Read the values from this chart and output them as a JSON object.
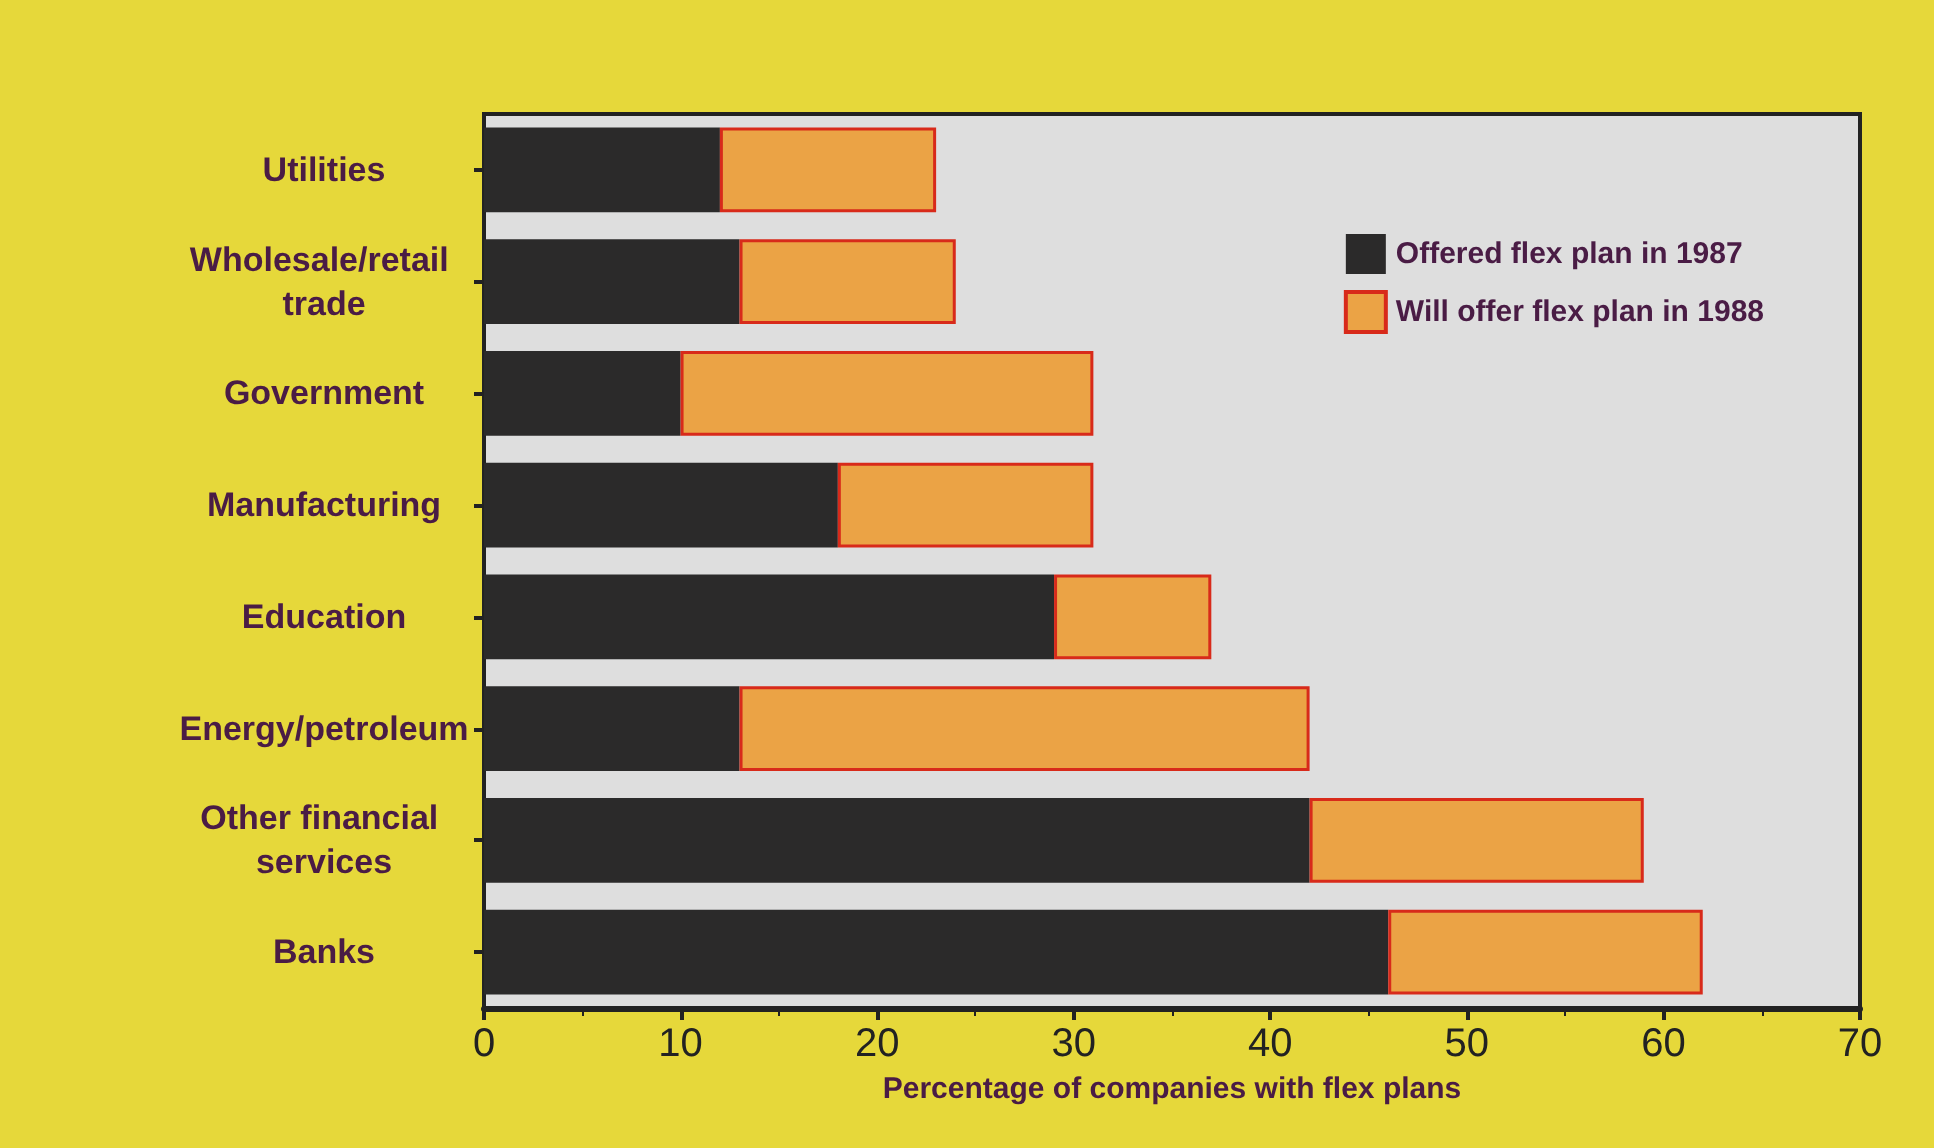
{
  "chart_data": {
    "type": "bar",
    "orientation": "horizontal",
    "stacked": true,
    "xlabel": "Percentage of companies with flex plans",
    "categories": [
      "Utilities",
      "Wholesale/retail trade",
      "Government",
      "Manufacturing",
      "Education",
      "Energy/petroleum",
      "Other financial services",
      "Banks"
    ],
    "series": [
      {
        "name": "Offered flex plan in 1987",
        "color": "#2b2a2a",
        "values": [
          12,
          13,
          10,
          18,
          29,
          13,
          42,
          46
        ]
      },
      {
        "name": "Will offer flex plan in 1988",
        "color": "#eba345",
        "values": [
          11,
          11,
          21,
          13,
          8,
          29,
          17,
          16
        ]
      }
    ],
    "xlim": [
      0,
      70
    ],
    "xticks": [
      0,
      10,
      20,
      30,
      40,
      50,
      60,
      70
    ],
    "grid": false,
    "legend": "top right"
  }
}
